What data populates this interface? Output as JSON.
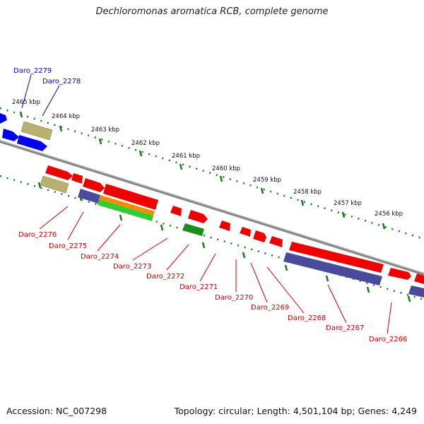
{
  "title": "Dechloromonas aromatica RCB, complete genome",
  "footer": {
    "accession": "Accession: NC_007298",
    "topology": "Topology: circular; Length: 4,501,104 bp; Genes: 4,249"
  },
  "ticks": [
    "2465 kbp",
    "2464 kbp",
    "2463 kbp",
    "2462 kbp",
    "2461 kbp",
    "2460 kbp",
    "2459 kbp",
    "2458 kbp",
    "2457 kbp",
    "2456 kbp"
  ],
  "genes_top": [
    "Daro_2279",
    "Daro_2278"
  ],
  "genes_bottom": [
    "Daro_2276",
    "Daro_2275",
    "Daro_2274",
    "Daro_2273",
    "Daro_2272",
    "Daro_2271",
    "Daro_2270",
    "Daro_2269",
    "Daro_2268",
    "Daro_2267",
    "Daro_2266"
  ],
  "colors": {
    "top_label": "#0000cc",
    "bottom_label": "#cc0000",
    "backbone": "#888888",
    "dots": "#1a7a1a",
    "red": "#ee0000",
    "blue": "#0000ee",
    "purple": "#4a4a9a",
    "khaki": "#b8b070",
    "orange": "#ff8800",
    "green": "#33cc33",
    "darkgreen": "#1c8c1c"
  }
}
